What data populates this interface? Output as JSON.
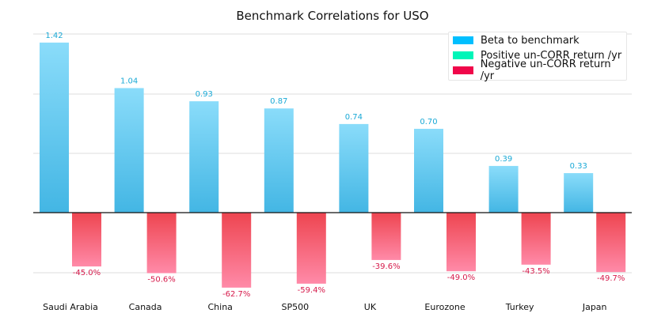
{
  "chart_data": {
    "type": "bar",
    "title": "Benchmark Correlations for USO",
    "categories": [
      "Saudi Arabia",
      "Canada",
      "China",
      "SP500",
      "UK",
      "Eurozone",
      "Turkey",
      "Japan"
    ],
    "series": [
      {
        "name": "Beta to benchmark",
        "values": [
          1.42,
          1.04,
          0.93,
          0.87,
          0.74,
          0.7,
          0.39,
          0.33
        ],
        "labels": [
          "1.42",
          "1.04",
          "0.93",
          "0.87",
          "0.74",
          "0.70",
          "0.39",
          "0.33"
        ]
      },
      {
        "name": "Negative un-CORR return /yr",
        "values": [
          -45.0,
          -50.6,
          -62.7,
          -59.4,
          -39.6,
          -49.0,
          -43.5,
          -49.7
        ],
        "labels": [
          "-45.0%",
          "-50.6%",
          "-62.7%",
          "-59.4%",
          "-39.6%",
          "-49.0%",
          "-43.5%",
          "-49.7%"
        ]
      }
    ],
    "grid": true,
    "legend_position": "top-right"
  },
  "legend": {
    "items": [
      {
        "label": "Beta to benchmark",
        "color": "#00bfff"
      },
      {
        "label": "Positive un-CORR return /yr",
        "color": "#00f5b8"
      },
      {
        "label": "Negative un-CORR return /yr",
        "color": "#f0064a"
      }
    ]
  },
  "colors": {
    "beta_label": "#1aa9d6",
    "neg_label": "#d6194a",
    "grid": "#dddddd",
    "zero_line": "#111111"
  }
}
